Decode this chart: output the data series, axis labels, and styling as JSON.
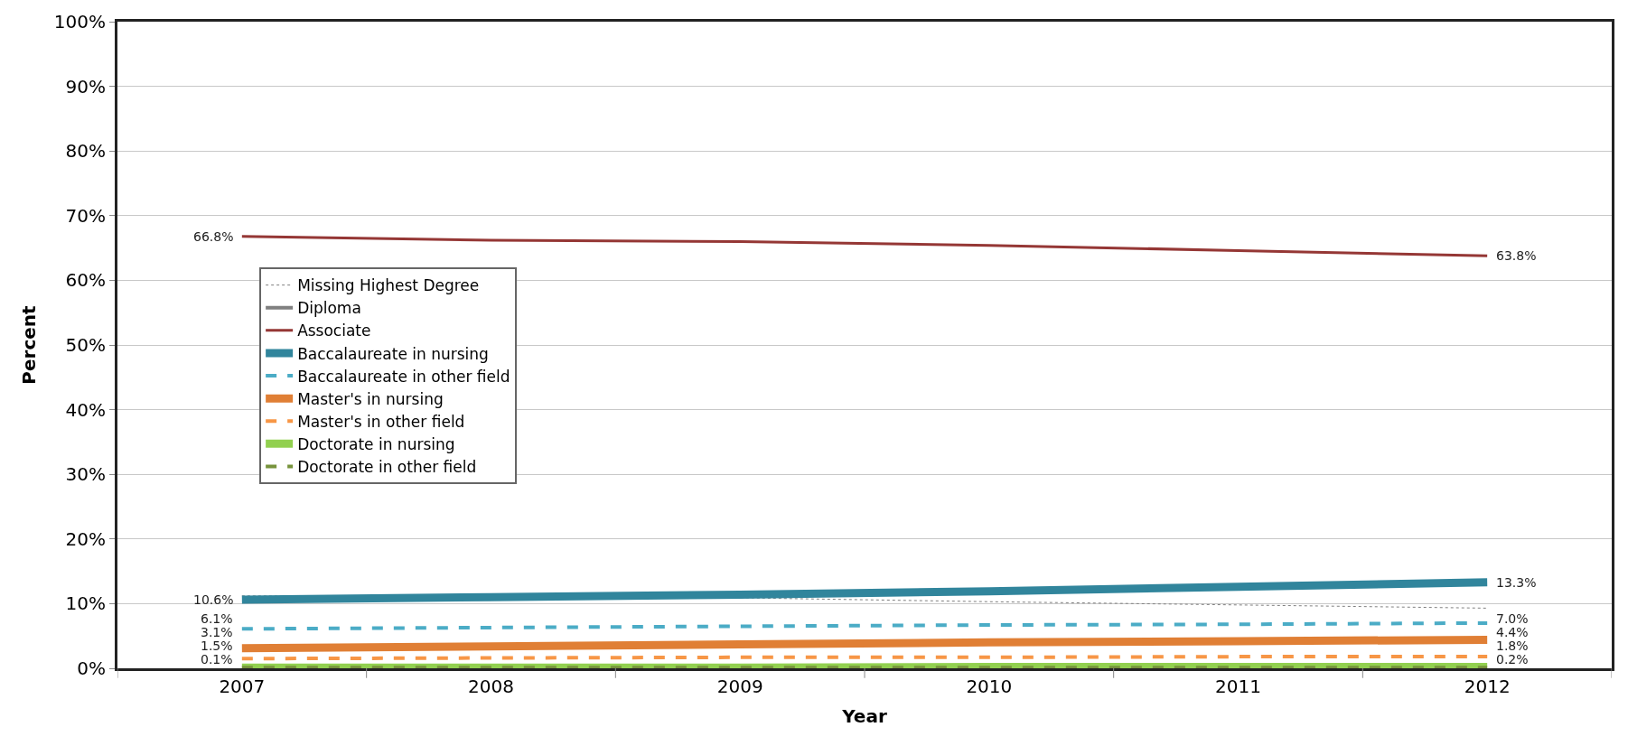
{
  "chart_data": {
    "type": "line",
    "xlabel": "Year",
    "ylabel": "Percent",
    "categories": [
      "2007",
      "2008",
      "2009",
      "2010",
      "2011",
      "2012"
    ],
    "ylim": [
      0,
      100
    ],
    "yticks": [
      {
        "value": 0,
        "label": "0%"
      },
      {
        "value": 10,
        "label": "10%"
      },
      {
        "value": 20,
        "label": "20%"
      },
      {
        "value": 30,
        "label": "30%"
      },
      {
        "value": 40,
        "label": "40%"
      },
      {
        "value": 50,
        "label": "50%"
      },
      {
        "value": 60,
        "label": "60%"
      },
      {
        "value": 70,
        "label": "70%"
      },
      {
        "value": 80,
        "label": "80%"
      },
      {
        "value": 90,
        "label": "90%"
      },
      {
        "value": 100,
        "label": "100%"
      }
    ],
    "grid": "y",
    "legend": "left",
    "marker": "none",
    "series": [
      {
        "name": "Missing Highest Degree",
        "color": "#7f7f7f",
        "line_style": "dotted",
        "values": [
          11.2,
          11.1,
          10.9,
          10.3,
          9.8,
          9.3
        ]
      },
      {
        "name": "Diploma",
        "color": "#808080",
        "line_style": "solid",
        "values": [
          null,
          null,
          null,
          null,
          null,
          null
        ]
      },
      {
        "name": "Associate",
        "color": "#953735",
        "line_style": "solid",
        "values": [
          66.8,
          66.2,
          66.0,
          65.4,
          64.6,
          63.8
        ],
        "value_labels": [
          "66.8%",
          null,
          null,
          null,
          null,
          "63.8%"
        ]
      },
      {
        "name": "Baccalaureate in nursing",
        "color": "#31859c",
        "line_style": "solid",
        "values": [
          10.6,
          11.0,
          11.4,
          11.9,
          12.6,
          13.3
        ],
        "value_labels": [
          "10.6%",
          null,
          null,
          null,
          null,
          "13.3%"
        ]
      },
      {
        "name": "Baccalaureate in other field",
        "color": "#4bacc6",
        "line_style": "dashed",
        "values": [
          6.1,
          6.3,
          6.5,
          6.7,
          6.8,
          7.0
        ],
        "value_labels": [
          "6.1%",
          null,
          null,
          null,
          null,
          "7.0%"
        ]
      },
      {
        "name": "Master's in nursing",
        "color": "#e07f35",
        "line_style": "solid",
        "values": [
          3.1,
          3.4,
          3.7,
          4.0,
          4.2,
          4.4
        ],
        "value_labels": [
          "3.1%",
          null,
          null,
          null,
          null,
          "4.4%"
        ]
      },
      {
        "name": "Master's in other field",
        "color": "#f79646",
        "line_style": "dashed",
        "values": [
          1.5,
          1.6,
          1.7,
          1.7,
          1.8,
          1.8
        ],
        "value_labels": [
          "1.5%",
          null,
          null,
          null,
          null,
          "1.8%"
        ]
      },
      {
        "name": "Doctorate in nursing",
        "color": "#92d050",
        "line_style": "solid",
        "values": [
          0.1,
          0.1,
          0.1,
          0.2,
          0.2,
          0.2
        ],
        "value_labels": [
          "0.1%",
          null,
          null,
          null,
          null,
          "0.2%"
        ]
      },
      {
        "name": "Doctorate in other field",
        "color": "#77933c",
        "line_style": "dashed",
        "values": [
          0.1,
          0.1,
          0.1,
          0.1,
          0.1,
          0.1
        ]
      }
    ]
  }
}
